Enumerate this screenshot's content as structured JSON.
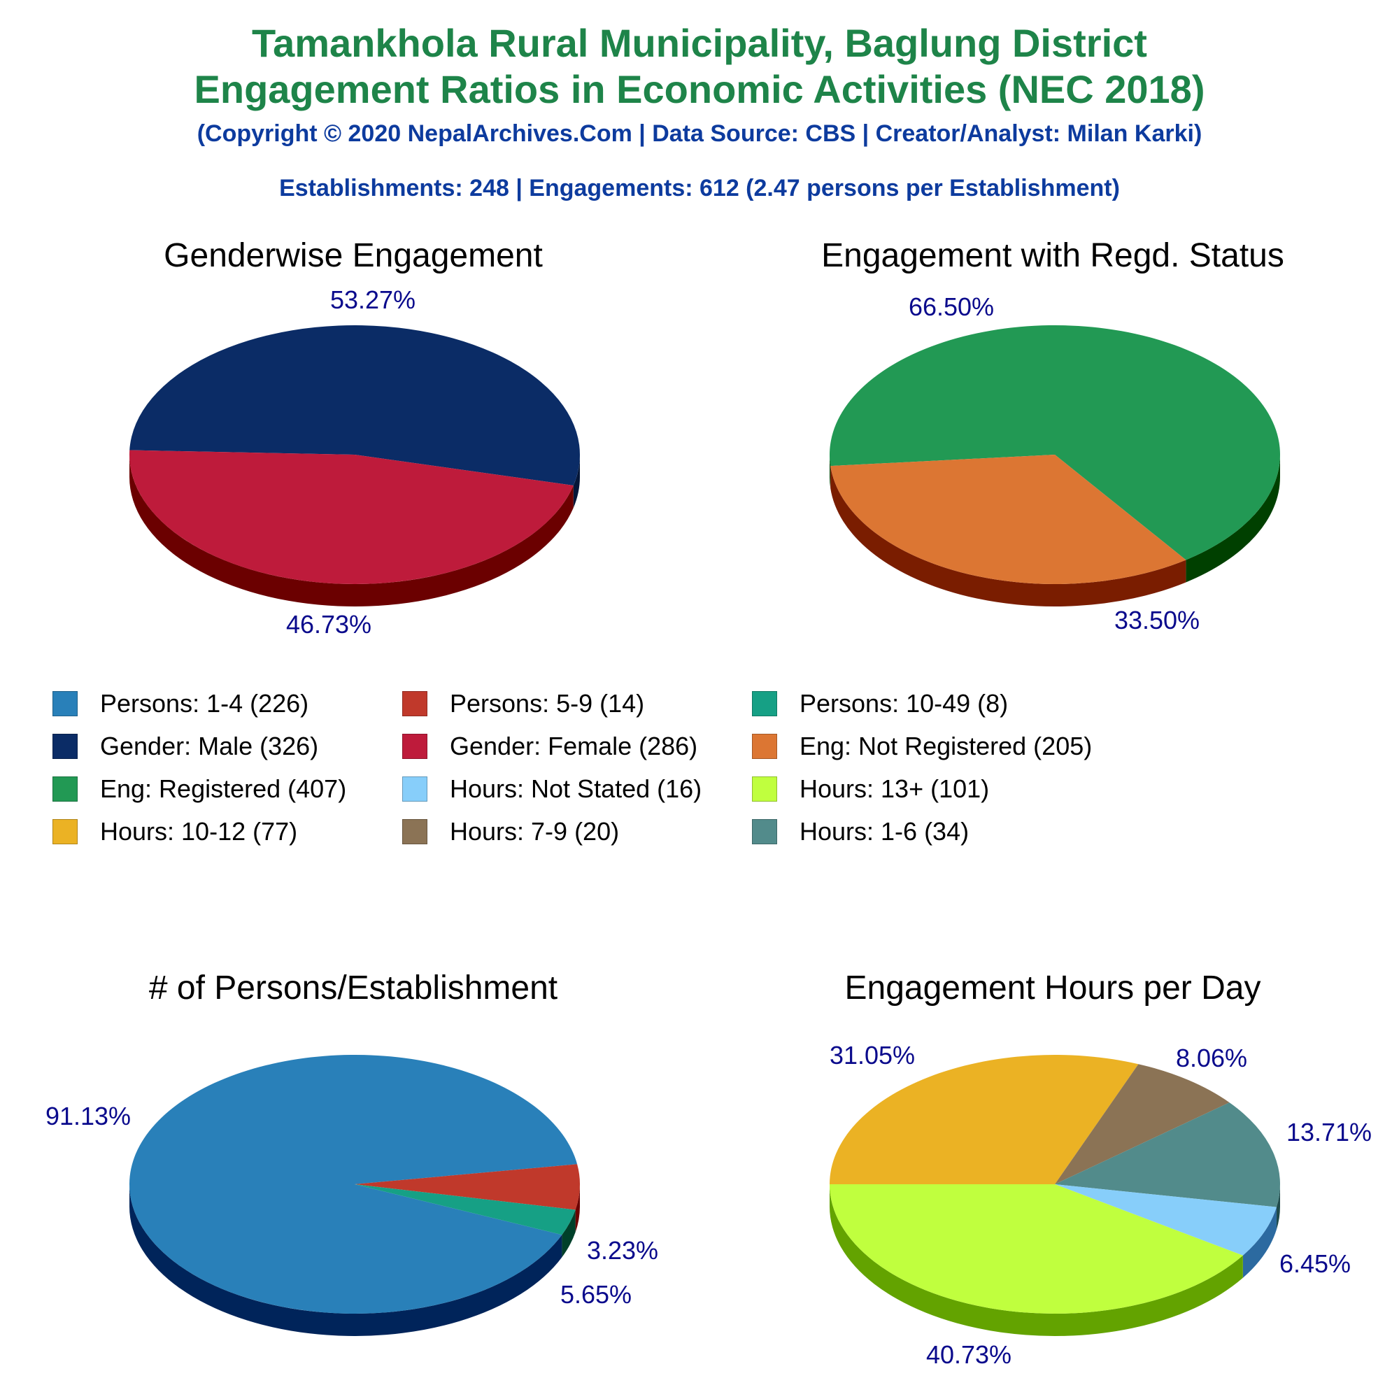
{
  "header": {
    "title_line1": "Tamankhola Rural Municipality, Baglung District",
    "title_line2": "Engagement Ratios in Economic Activities (NEC 2018)",
    "copyright": "(Copyright © 2020 NepalArchives.Com | Data Source: CBS | Creator/Analyst: Milan Karki)",
    "summary": "Establishments: 248 | Engagements: 612 (2.47 persons per Establishment)"
  },
  "legend": [
    {
      "label": "Persons: 1-4 (226)",
      "color": "#2980b9"
    },
    {
      "label": "Persons: 5-9 (14)",
      "color": "#c0392b"
    },
    {
      "label": "Persons: 10-49 (8)",
      "color": "#16a085"
    },
    {
      "label": "Gender: Male (326)",
      "color": "#0b2c66"
    },
    {
      "label": "Gender: Female (286)",
      "color": "#be1b3b"
    },
    {
      "label": "Eng: Not Registered (205)",
      "color": "#dc7633"
    },
    {
      "label": "Eng: Registered (407)",
      "color": "#229954"
    },
    {
      "label": "Hours: Not Stated (16)",
      "color": "#87cefa"
    },
    {
      "label": "Hours: 13+ (101)",
      "color": "#c0ff3e"
    },
    {
      "label": "Hours: 10-12 (77)",
      "color": "#ebb224"
    },
    {
      "label": "Hours: 7-9 (20)",
      "color": "#8b7355"
    },
    {
      "label": "Hours: 1-6 (34)",
      "color": "#528b8b"
    }
  ],
  "chart_data": [
    {
      "type": "pie",
      "title": "Genderwise Engagement",
      "slices": [
        {
          "name": "Male",
          "value": 326,
          "percent": "53.27%",
          "color": "#0b2c66",
          "side": "#041638"
        },
        {
          "name": "Female",
          "value": 286,
          "percent": "46.73%",
          "color": "#be1b3b",
          "side": "#6b0000"
        }
      ]
    },
    {
      "type": "pie",
      "title": "Engagement with Regd. Status",
      "slices": [
        {
          "name": "Registered",
          "value": 407,
          "percent": "66.50%",
          "color": "#229954",
          "side": "#004000"
        },
        {
          "name": "Not Registered",
          "value": 205,
          "percent": "33.50%",
          "color": "#dc7633",
          "side": "#7a1d00"
        }
      ]
    },
    {
      "type": "pie",
      "title": "# of Persons/Establishment",
      "slices": [
        {
          "name": "1-4",
          "value": 226,
          "percent": "91.13%",
          "color": "#2980b9",
          "side": "#00245a"
        },
        {
          "name": "5-9",
          "value": 14,
          "percent": "5.65%",
          "color": "#c0392b",
          "side": "#6b0000"
        },
        {
          "name": "10-49",
          "value": 8,
          "percent": "3.23%",
          "color": "#16a085",
          "side": "#00402a"
        }
      ]
    },
    {
      "type": "pie",
      "title": "Engagement Hours per Day",
      "slices": [
        {
          "name": "10-12",
          "value": 77,
          "percent": "31.05%",
          "color": "#ebb224",
          "side": "#8a6200"
        },
        {
          "name": "7-9",
          "value": 20,
          "percent": "8.06%",
          "color": "#8b7355",
          "side": "#4a3a20"
        },
        {
          "name": "1-6",
          "value": 34,
          "percent": "13.71%",
          "color": "#528b8b",
          "side": "#1f4a4a"
        },
        {
          "name": "Not Stated",
          "value": 16,
          "percent": "6.45%",
          "color": "#87cefa",
          "side": "#2c6aa0"
        },
        {
          "name": "13+",
          "value": 101,
          "percent": "40.73%",
          "color": "#c0ff3e",
          "side": "#63a300"
        }
      ]
    }
  ]
}
